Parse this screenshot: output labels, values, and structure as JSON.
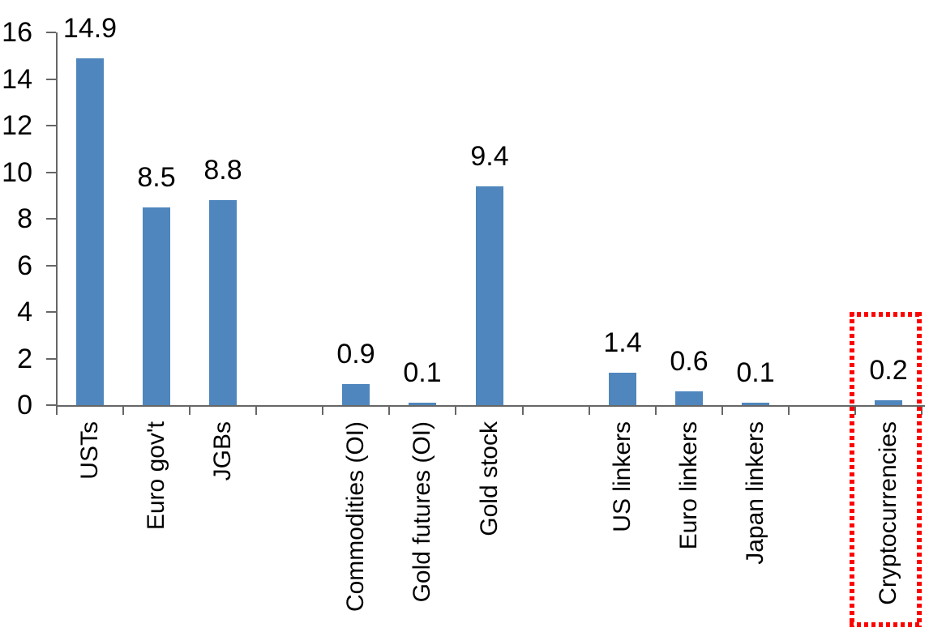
{
  "chart_data": {
    "type": "bar",
    "title": "",
    "xlabel": "",
    "ylabel": "",
    "categories": [
      "USTs",
      "Euro gov't",
      "JGBs",
      "Commodities (OI)",
      "Gold futures (OI)",
      "Gold stock",
      "US linkers",
      "Euro linkers",
      "Japan linkers",
      "Cryptocurrencies"
    ],
    "values": [
      14.9,
      8.5,
      8.8,
      0.9,
      0.1,
      9.4,
      1.4,
      0.6,
      0.1,
      0.2
    ],
    "data_labels": [
      "14.9",
      "8.5",
      "8.8",
      "0.9",
      "0.1",
      "9.4",
      "1.4",
      "0.6",
      "0.1",
      "0.2"
    ],
    "groups": [
      [
        0,
        1,
        2
      ],
      [
        3,
        4,
        5
      ],
      [
        6,
        7,
        8
      ],
      [
        9
      ]
    ],
    "ylim": [
      0,
      16
    ],
    "yticks": [
      "0",
      "2",
      "4",
      "6",
      "8",
      "10",
      "12",
      "14",
      "16"
    ],
    "grid": false,
    "legend": false,
    "bar_color": "#4f86bd",
    "axis_color": "#666666",
    "text_color": "#000000",
    "highlight": {
      "category": "Cryptocurrencies",
      "box_color": "#ff0000",
      "box_style": "dotted"
    }
  }
}
